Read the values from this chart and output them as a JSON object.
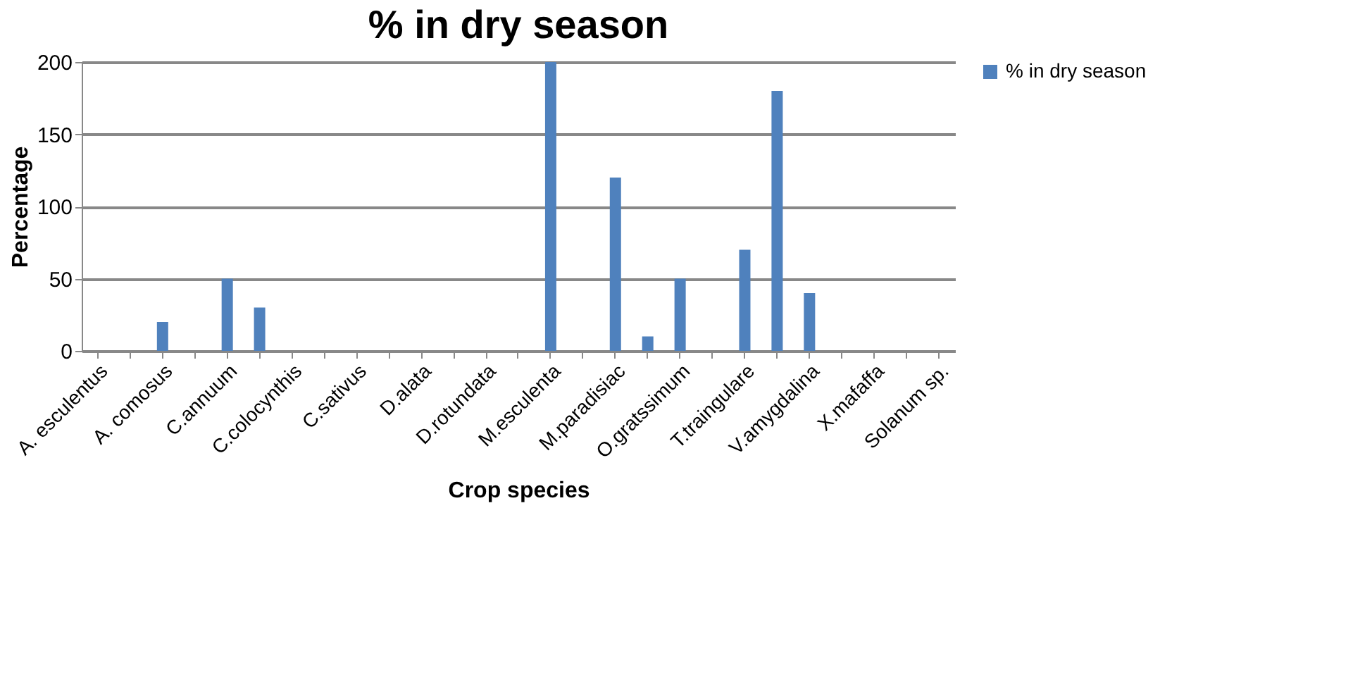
{
  "chart_data": {
    "type": "bar",
    "title": "% in dry season",
    "xlabel": "Crop species",
    "ylabel": "Percentage",
    "categories": [
      "A. esculentus",
      null,
      "A. comosus",
      null,
      "C.annuum",
      null,
      "C.colocynthis",
      null,
      "C.sativus",
      null,
      "D.alata",
      null,
      "D.rotundata",
      null,
      "M.esculenta",
      null,
      "M.paradisiac",
      null,
      "O.gratssimum",
      null,
      "T.traingulare",
      null,
      "V.amygdalina",
      null,
      "X.mafaffa",
      null,
      "Solanum sp."
    ],
    "series": [
      {
        "name": "% in dry season",
        "color": "#4f81bd",
        "values": [
          0,
          0,
          20,
          0,
          50,
          30,
          0,
          0,
          0,
          0,
          0,
          0,
          0,
          0,
          200,
          0,
          120,
          10,
          50,
          0,
          70,
          180,
          40,
          0,
          0,
          0,
          0
        ]
      }
    ],
    "ylim": [
      0,
      200
    ],
    "yticks": [
      0,
      50,
      100,
      150,
      200
    ],
    "grid": "y",
    "legend": "right"
  }
}
